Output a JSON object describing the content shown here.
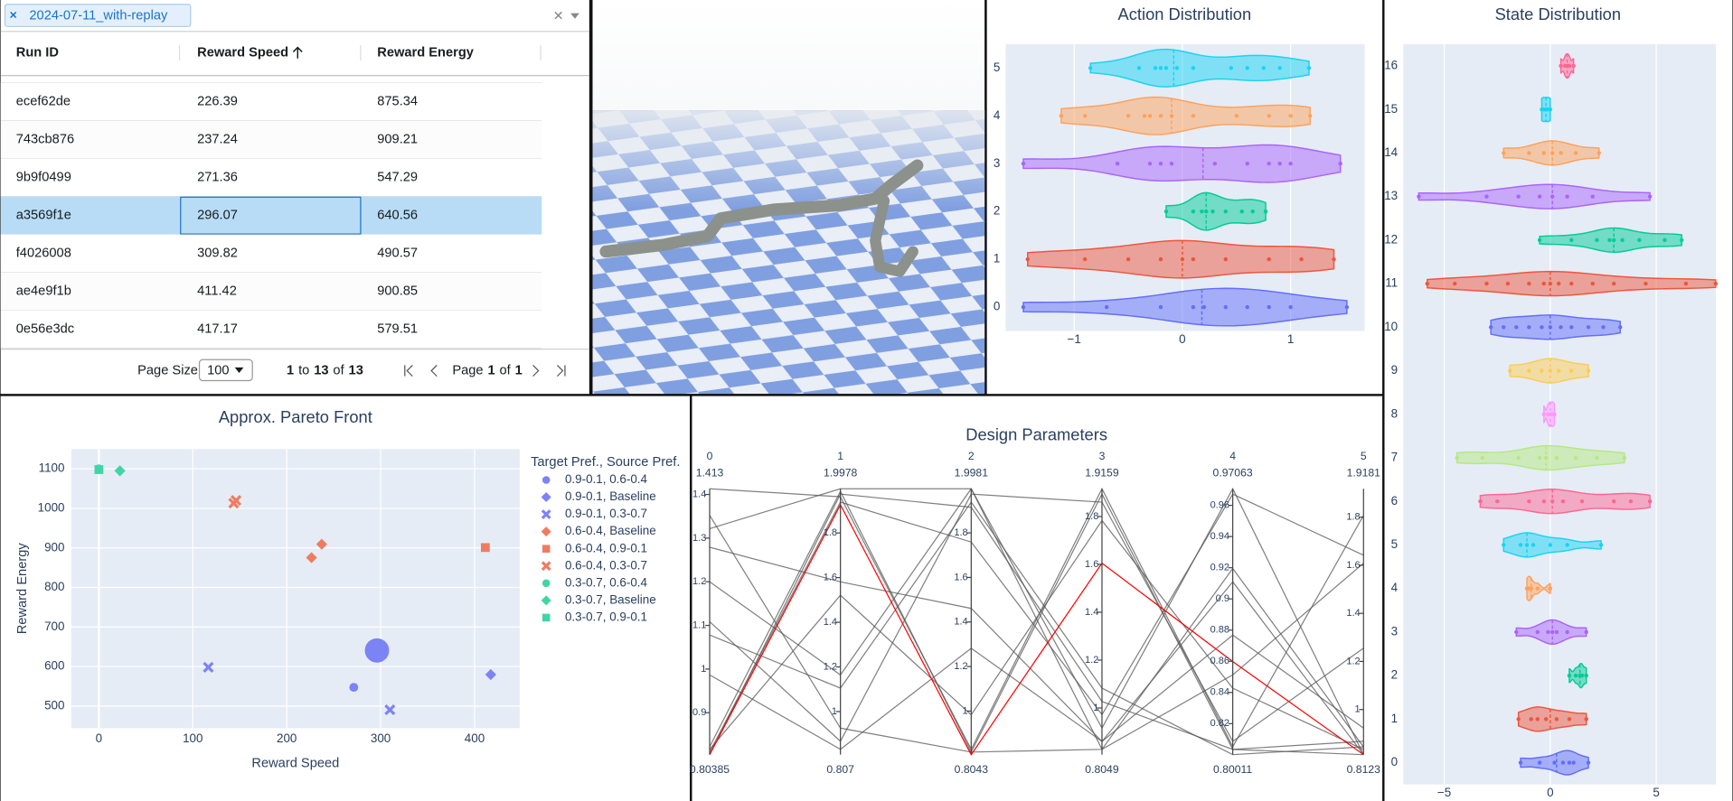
{
  "filter": {
    "chip": "2024-07-11_with-replay"
  },
  "table": {
    "columns": [
      "Run ID",
      "Reward Speed",
      "Reward Energy"
    ],
    "rows": [
      [
        "ecef62de",
        226.39,
        875.34
      ],
      [
        "743cb876",
        237.24,
        909.21
      ],
      [
        "9b9f0499",
        271.36,
        547.29
      ],
      [
        "a3569f1e",
        296.07,
        640.56
      ],
      [
        "f4026008",
        309.82,
        490.57
      ],
      [
        "ae4e9f1b",
        411.42,
        900.85
      ],
      [
        "0e56e3dc",
        417.17,
        579.51
      ]
    ],
    "selected_row": 3
  },
  "pagination": {
    "page_size_label": "Page Size:",
    "page_size": 100,
    "row_from": 1,
    "to": "to",
    "row_to": 13,
    "of": "of",
    "row_total": 13,
    "page_label": "Page",
    "page": 1,
    "page_count": 1
  },
  "chart_data": [
    {
      "type": "scatter",
      "title": "Approx. Pareto Front",
      "x_label": "Reward Speed",
      "y_label": "Reward Energy",
      "legend_title": "Target Pref., Source Pref.",
      "legend": "right",
      "grid": true,
      "xlim": [
        -29.4,
        448
      ],
      "ylim": [
        444,
        1150
      ],
      "xticks": [
        0,
        100,
        200,
        300,
        400
      ],
      "yticks": [
        500,
        600,
        700,
        800,
        900,
        1000,
        1100
      ],
      "series": [
        {
          "name": "0.9-0.1, 0.6-0.4",
          "color": "#7b83f5",
          "symbol": "circle",
          "x": [
            271.36,
            296.07
          ],
          "y": [
            547.29,
            640.56
          ],
          "sizes": [
            8,
            22
          ]
        },
        {
          "name": "0.9-0.1, Baseline",
          "color": "#7b83f5",
          "symbol": "diamond",
          "x": [
            417.17
          ],
          "y": [
            579.51
          ]
        },
        {
          "name": "0.9-0.1, 0.3-0.7",
          "color": "#7b83f5",
          "symbol": "x",
          "x": [
            116.5,
            309.82
          ],
          "y": [
            598,
            490.57
          ]
        },
        {
          "name": "0.6-0.4, Baseline",
          "color": "#ef7c61",
          "symbol": "diamond",
          "x": [
            226.39,
            237.24
          ],
          "y": [
            875.34,
            909.21
          ]
        },
        {
          "name": "0.6-0.4, 0.9-0.1",
          "color": "#ef7c61",
          "symbol": "square",
          "x": [
            411.42
          ],
          "y": [
            900.85
          ]
        },
        {
          "name": "0.6-0.4, 0.3-0.7",
          "color": "#ef7c61",
          "symbol": "x",
          "x": [
            143.5,
            146
          ],
          "y": [
            1013,
            1020
          ]
        },
        {
          "name": "0.3-0.7, 0.6-0.4",
          "color": "#3fd6a6",
          "symbol": "circle",
          "x": [
            0
          ],
          "y": [
            1100
          ]
        },
        {
          "name": "0.3-0.7, Baseline",
          "color": "#3fd6a6",
          "symbol": "diamond",
          "x": [
            22.4
          ],
          "y": [
            1095
          ]
        },
        {
          "name": "0.3-0.7, 0.9-0.1",
          "color": "#3fd6a6",
          "symbol": "square",
          "x": [
            0
          ],
          "y": [
            1098
          ]
        }
      ]
    },
    {
      "type": "violin",
      "title": "Action Distribution",
      "grid": true,
      "xlim": [
        -1.633,
        1.684
      ],
      "xticks": [
        {
          "value": -1,
          "label": "−1"
        },
        0,
        1
      ],
      "categories": [
        "0",
        "1",
        "2",
        "3",
        "4",
        "5"
      ],
      "violins": [
        {
          "color": "#636efa",
          "median": 0.18,
          "values": [
            -1.47,
            -0.7,
            -0.2,
            0.1,
            0.2,
            0.4,
            0.6,
            0.8,
            1.0,
            1.52
          ]
        },
        {
          "color": "#ef553b",
          "median": 0,
          "values": [
            -1.43,
            -0.9,
            -0.5,
            -0.2,
            0,
            0.1,
            0.4,
            0.8,
            1.1,
            1.4
          ]
        },
        {
          "color": "#00cc96",
          "median": 0.22,
          "values": [
            -0.15,
            0.1,
            0.18,
            0.22,
            0.28,
            0.4,
            0.55,
            0.65,
            0.77
          ]
        },
        {
          "color": "#ab63fa",
          "median": 0.19,
          "values": [
            -1.47,
            -0.6,
            -0.3,
            -0.2,
            -0.1,
            0.3,
            0.6,
            0.8,
            0.9,
            1.0,
            1.46
          ]
        },
        {
          "color": "#ffa15a",
          "median": -0.1,
          "values": [
            -1.12,
            -0.9,
            -0.5,
            -0.35,
            -0.3,
            -0.2,
            -0.1,
            0.1,
            0.5,
            0.8,
            1.0,
            1.18
          ]
        },
        {
          "color": "#19d3f3",
          "median": -0.08,
          "values": [
            -0.85,
            -0.4,
            -0.25,
            -0.2,
            -0.15,
            -0.05,
            0.1,
            0.45,
            0.6,
            0.75,
            0.9,
            1.17
          ]
        }
      ]
    },
    {
      "type": "violin",
      "title": "State Distribution",
      "grid": true,
      "xlim": [
        -6.93,
        7.81
      ],
      "xticks": [
        {
          "value": -5,
          "label": "−5"
        },
        0,
        5
      ],
      "categories": [
        "0",
        "1",
        "2",
        "3",
        "4",
        "5",
        "6",
        "7",
        "8",
        "9",
        "10",
        "11",
        "12",
        "13",
        "14",
        "15",
        "16"
      ],
      "violins": [
        {
          "color": "#636efa",
          "median": 0.3,
          "values": [
            -1.4,
            -0.5,
            0.2,
            0.6,
            0.9,
            1.1,
            1.8
          ]
        },
        {
          "color": "#ef553b",
          "median": 0,
          "values": [
            -1.5,
            -0.9,
            -0.6,
            -0.2,
            0.3,
            0.9,
            1.7
          ]
        },
        {
          "color": "#00cc96",
          "median": 1.4,
          "values": [
            0.9,
            1.2,
            1.4,
            1.5,
            1.7
          ]
        },
        {
          "color": "#ab63fa",
          "median": 0.1,
          "values": [
            -1.6,
            -0.6,
            -0.1,
            0.1,
            0.3,
            0.8,
            1.7
          ]
        },
        {
          "color": "#ffa15a",
          "median": -0.9,
          "values": [
            -1.1,
            -1,
            -0.9,
            -0.6,
            0
          ]
        },
        {
          "color": "#19d3f3",
          "median": -1.1,
          "values": [
            -2.2,
            -1.4,
            -1.1,
            -0.8,
            0,
            0.8,
            2.4
          ]
        },
        {
          "color": "#ff6692",
          "median": 0.1,
          "values": [
            -3.3,
            -2.5,
            -1,
            -0.3,
            0.1,
            0.6,
            1.5,
            3,
            3.8,
            4.7
          ]
        },
        {
          "color": "#b6e880",
          "median": -0.2,
          "values": [
            -4.4,
            -3.2,
            -1.5,
            -0.5,
            -0.2,
            0.3,
            1.2,
            2.2,
            3.5
          ]
        },
        {
          "color": "#ff97ff",
          "median": 0,
          "values": [
            -0.3,
            -0.1,
            0,
            0.1,
            0.2
          ]
        },
        {
          "color": "#fecb52",
          "median": 0,
          "values": [
            -1.9,
            -1,
            -0.4,
            0,
            0.4,
            1,
            1.8
          ]
        },
        {
          "color": "#636efa",
          "median": 0,
          "values": [
            -2.8,
            -2.2,
            -1.6,
            -1,
            -0.4,
            0,
            0.5,
            1,
            1.8,
            2.5,
            3.3
          ]
        },
        {
          "color": "#ef553b",
          "median": 0,
          "values": [
            -5.8,
            -4.5,
            -3,
            -2,
            -1,
            -0.3,
            0,
            0.4,
            1,
            2,
            3,
            4.5,
            6.4,
            7.8
          ]
        },
        {
          "color": "#00cc96",
          "median": 3.0,
          "values": [
            -0.5,
            1,
            2.2,
            2.8,
            3,
            3.4,
            4.2,
            5.4,
            6.2
          ]
        },
        {
          "color": "#ab63fa",
          "median": 0.1,
          "values": [
            -6.2,
            -3,
            -1.5,
            -0.5,
            0.1,
            0.8,
            2,
            4.7
          ]
        },
        {
          "color": "#ffa15a",
          "median": 0.1,
          "values": [
            -2.2,
            -1,
            -0.3,
            0.1,
            0.5,
            1.2,
            2.3
          ]
        },
        {
          "color": "#19d3f3",
          "median": -0.2,
          "values": [
            -0.4,
            -0.3,
            -0.2,
            -0.1,
            0
          ]
        },
        {
          "color": "#ff6692",
          "median": 0.8,
          "values": [
            0.5,
            0.7,
            0.8,
            0.9,
            1.1
          ]
        }
      ]
    },
    {
      "type": "parcoords",
      "title": "Design Parameters",
      "dimensions": [
        {
          "label": "0",
          "range": [
            0.80385,
            1.413
          ],
          "ticks": [
            0.9,
            1,
            1.1,
            1.2,
            1.3,
            1.4
          ]
        },
        {
          "label": "1",
          "range": [
            0.807,
            1.9978
          ],
          "ticks": [
            1,
            1.2,
            1.4,
            1.6,
            1.8
          ]
        },
        {
          "label": "2",
          "range": [
            0.8043,
            1.9981
          ],
          "ticks": [
            1,
            1.2,
            1.4,
            1.6,
            1.8
          ]
        },
        {
          "label": "3",
          "range": [
            0.8049,
            1.9159
          ],
          "ticks": [
            1,
            1.2,
            1.4,
            1.6,
            1.8
          ]
        },
        {
          "label": "4",
          "range": [
            0.80011,
            0.97063
          ],
          "ticks": [
            0.82,
            0.84,
            0.86,
            0.88,
            0.9,
            0.92,
            0.94,
            0.96
          ]
        },
        {
          "label": "5",
          "range": [
            0.8123,
            1.9181
          ],
          "ticks": [
            1,
            1.2,
            1.4,
            1.6,
            1.8
          ]
        }
      ],
      "lines": [
        {
          "color": "#555555",
          "values": [
            1.413,
            1.962,
            0.828,
            1.9159,
            0.8052,
            1.8075
          ]
        },
        {
          "color": "#555555",
          "values": [
            1.3216,
            1.9978,
            1.9981,
            0.916,
            0.97063,
            0.8123
          ]
        },
        {
          "color": "#555555",
          "values": [
            1.279,
            1.581,
            1.461,
            0.86,
            0.8768,
            0.923
          ]
        },
        {
          "color": "#555555",
          "values": [
            1.1998,
            1.164,
            1.9981,
            0.827,
            0.8513,
            1.6085
          ]
        },
        {
          "color": "#555555",
          "values": [
            1.1084,
            0.867,
            1.974,
            1.86,
            0.8086,
            1.255
          ]
        },
        {
          "color": "#555555",
          "values": [
            0.816,
            1.521,
            0.983,
            1.783,
            0.8427,
            0.834
          ]
        },
        {
          "color": "#555555",
          "values": [
            0.80385,
            1.974,
            1.915,
            1.027,
            0.8035,
            0.8123
          ]
        },
        {
          "color": "#555555",
          "values": [
            1.078,
            1.105,
            1.938,
            1.083,
            0.80011,
            0.845
          ]
        },
        {
          "color": "#555555",
          "values": [
            0.9866,
            0.831,
            1.282,
            0.86,
            0.911,
            0.8123
          ]
        },
        {
          "color": "#555555",
          "values": [
            0.8099,
            1.938,
            1.759,
            0.972,
            0.9672,
            1.642
          ]
        },
        {
          "color": "#555555",
          "values": [
            0.8221,
            1.986,
            0.816,
            1.894,
            0.8035,
            0.868
          ]
        },
        {
          "color": "#555555",
          "values": [
            1.3521,
            0.926,
            0.816,
            0.827,
            0.9195,
            0.845
          ]
        },
        {
          "color": "#ff0000",
          "values": [
            0.80385,
            1.926,
            0.8043,
            1.605,
            0.8598,
            0.8123
          ]
        }
      ]
    }
  ]
}
